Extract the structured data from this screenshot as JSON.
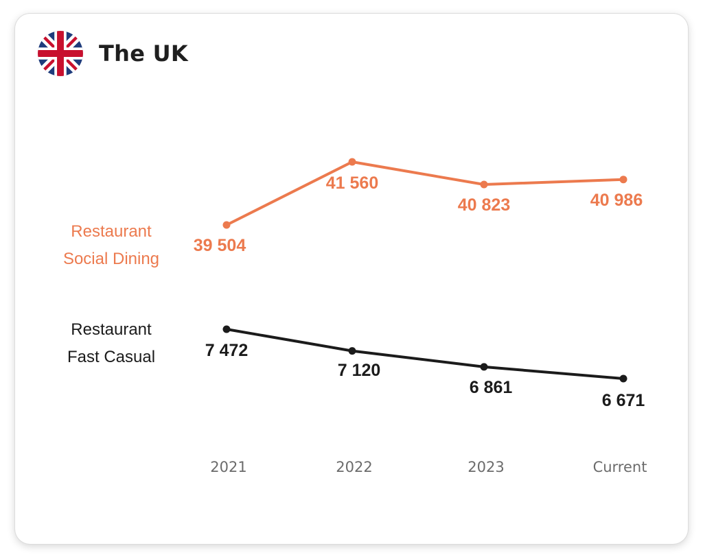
{
  "header": {
    "title": "The UK",
    "flag_icon": "uk-flag-icon"
  },
  "colors": {
    "social_dining": "#ec7a4e",
    "fast_casual": "#1b1b1b",
    "tick_text": "#6b6b6b",
    "flag_blue": "#1f3c7c",
    "flag_red": "#c8102e"
  },
  "chart_data": {
    "type": "line",
    "title": "The UK",
    "categories": [
      "2021",
      "2022",
      "2023",
      "Current"
    ],
    "grid": false,
    "series": [
      {
        "name": "Restaurant Social Dining",
        "name_lines": [
          "Restaurant",
          "Social Dining"
        ],
        "values": [
          39504,
          41560,
          40823,
          40986
        ],
        "labels": [
          "39 504",
          "41 560",
          "40 823",
          "40 986"
        ],
        "color": "#ec7a4e"
      },
      {
        "name": "Restaurant Fast Casual",
        "name_lines": [
          "Restaurant",
          "Fast Casual"
        ],
        "values": [
          7472,
          7120,
          6861,
          6671
        ],
        "labels": [
          "7 472",
          "7 120",
          "6 861",
          "6 671"
        ],
        "color": "#1b1b1b"
      }
    ]
  }
}
